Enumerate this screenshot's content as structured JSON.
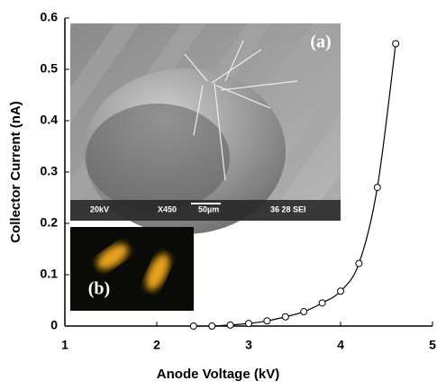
{
  "chart_data": {
    "type": "line",
    "x_label": "Anode Voltage (kV)",
    "y_label": "Collector Current (nA)",
    "x": [
      2.4,
      2.6,
      2.8,
      3.0,
      3.2,
      3.4,
      3.6,
      3.8,
      4.0,
      4.2,
      4.4,
      4.6
    ],
    "series": [
      {
        "color": "#000000",
        "values": [
          0,
          0,
          0.002,
          0.005,
          0.01,
          0.018,
          0.028,
          0.045,
          0.068,
          0.122,
          0.27,
          0.55
        ]
      }
    ],
    "xlim": [
      1,
      5
    ],
    "xticks": [
      1,
      2,
      3,
      4,
      5
    ],
    "ylim": [
      0,
      0.6
    ],
    "yticks": [
      0,
      0.1,
      0.2,
      0.3,
      0.4,
      0.5,
      0.6
    ],
    "insets": [
      {
        "label": "(a)",
        "footer": [
          "20kV",
          "X450",
          "50µm",
          "36 28 SEI"
        ]
      },
      {
        "label": "(b)"
      }
    ]
  }
}
